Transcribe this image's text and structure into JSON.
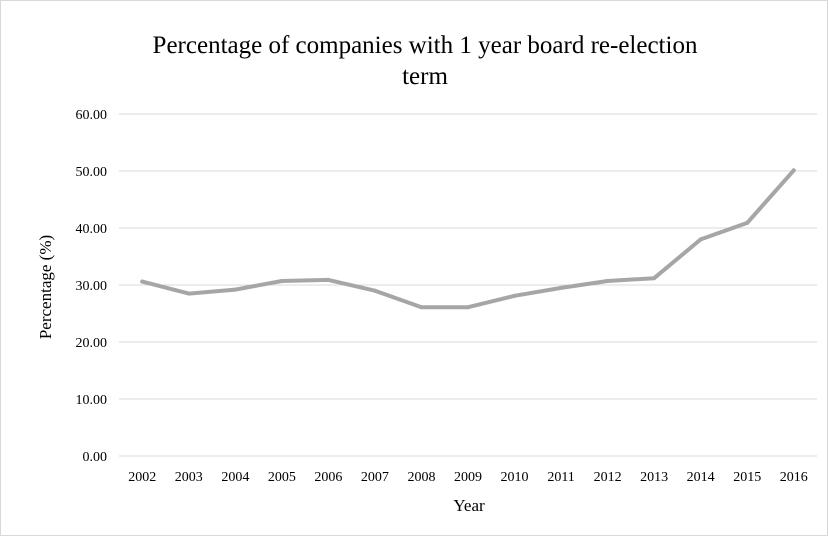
{
  "chart_data": {
    "type": "line",
    "title_lines": [
      "Percentage  of  companies  with  1  year  board  re-election",
      "term"
    ],
    "xlabel": "Year",
    "ylabel": "Percentage (%)",
    "categories": [
      "2002",
      "2003",
      "2004",
      "2005",
      "2006",
      "2007",
      "2008",
      "2009",
      "2010",
      "2011",
      "2012",
      "2013",
      "2014",
      "2015",
      "2016"
    ],
    "y_ticks": [
      "0.00",
      "10.00",
      "20.00",
      "30.00",
      "40.00",
      "50.00",
      "60.00"
    ],
    "ylim": [
      0,
      60
    ],
    "grid": true,
    "legend": "none",
    "series": [
      {
        "color": "#a6a6a6",
        "values": [
          30.6,
          28.5,
          29.2,
          30.7,
          30.9,
          29.0,
          26.1,
          26.1,
          28.1,
          29.5,
          30.7,
          31.2,
          38.0,
          40.9,
          50.1
        ]
      }
    ]
  }
}
